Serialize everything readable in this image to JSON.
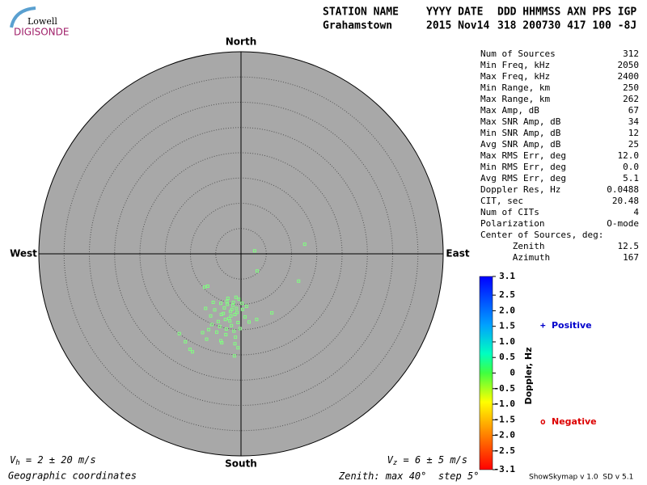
{
  "logo": {
    "line1": "Lowell",
    "line2": "DIGISONDE"
  },
  "header": {
    "labels": [
      "STATION NAME",
      "YYYY DATE",
      "DDD HHMMSS AXN PPS IGP"
    ],
    "values": [
      "Grahamstown",
      "2015 Nov14",
      "318 200730 417 100 -8J"
    ]
  },
  "stats": [
    {
      "label": "Num of Sources",
      "value": "312"
    },
    {
      "label": "Min Freq, kHz",
      "value": "2050"
    },
    {
      "label": "Max Freq, kHz",
      "value": "2400"
    },
    {
      "label": "Min Range, km",
      "value": "250"
    },
    {
      "label": "Max Range, km",
      "value": "262"
    },
    {
      "label": "Max Amp, dB",
      "value": "67"
    },
    {
      "label": "Max SNR Amp, dB",
      "value": "34"
    },
    {
      "label": "Min SNR Amp, dB",
      "value": "12"
    },
    {
      "label": "Avg SNR Amp, dB",
      "value": "25"
    },
    {
      "label": "Max RMS Err, deg",
      "value": "12.0"
    },
    {
      "label": "Min RMS Err, deg",
      "value": "0.0"
    },
    {
      "label": "Avg RMS Err, deg",
      "value": "5.1"
    },
    {
      "label": "Doppler Res, Hz",
      "value": "0.0488"
    },
    {
      "label": "CIT, sec",
      "value": "20.48"
    },
    {
      "label": "Num of CITs",
      "value": "4"
    },
    {
      "label": "Polarization",
      "value": "O-mode"
    },
    {
      "label": "Center of Sources, deg:",
      "value": ""
    },
    {
      "label": "      Zenith",
      "value": "12.5"
    },
    {
      "label": "      Azimuth",
      "value": "167"
    }
  ],
  "chart_data": {
    "type": "skymap",
    "directions": {
      "north": "North",
      "south": "South",
      "west": "West",
      "east": "East"
    },
    "zenith_max": 40,
    "zenith_step": 5,
    "point_color": "#80ff80",
    "points": [
      [
        -2.1,
        -11.4
      ],
      [
        -1.6,
        -10.2
      ],
      [
        -2.8,
        -9.4
      ],
      [
        -1.0,
        -8.6
      ],
      [
        -0.4,
        -9.0
      ],
      [
        -3.3,
        -10.7
      ],
      [
        -2.4,
        -12.8
      ],
      [
        -1.2,
        -12.0
      ],
      [
        0.3,
        -11.0
      ],
      [
        0.8,
        -12.5
      ],
      [
        -0.6,
        -13.6
      ],
      [
        -3.9,
        -12.0
      ],
      [
        -4.5,
        -13.4
      ],
      [
        -1.9,
        -14.2
      ],
      [
        -2.9,
        -14.9
      ],
      [
        -5.2,
        -11.1
      ],
      [
        -4.0,
        -9.8
      ],
      [
        -1.5,
        -9.6
      ],
      [
        -2.6,
        -8.8
      ],
      [
        0.2,
        -9.8
      ],
      [
        1.1,
        -10.4
      ],
      [
        -0.9,
        -10.8
      ],
      [
        -3.5,
        -11.8
      ],
      [
        -2.2,
        -13.3
      ],
      [
        -1.4,
        -15.3
      ],
      [
        -4.8,
        -15.5
      ],
      [
        -5.8,
        -14.0
      ],
      [
        -6.4,
        -15.0
      ],
      [
        -3.0,
        -16.0
      ],
      [
        -1.1,
        -16.5
      ],
      [
        -0.2,
        -14.8
      ],
      [
        1.6,
        -13.5
      ],
      [
        -2.7,
        -10.0
      ],
      [
        -1.8,
        -11.0
      ],
      [
        -0.8,
        -11.6
      ],
      [
        -3.1,
        -13.0
      ],
      [
        -2.0,
        -12.3
      ],
      [
        -4.2,
        -14.4
      ],
      [
        -6.8,
        -16.9
      ],
      [
        -7.6,
        -15.6
      ],
      [
        -5.5,
        -9.6
      ],
      [
        -6.0,
        -12.3
      ],
      [
        -7.0,
        -10.8
      ],
      [
        -3.8,
        -17.6
      ],
      [
        -1.2,
        -17.8
      ],
      [
        -0.6,
        -18.6
      ],
      [
        12.6,
        1.9
      ],
      [
        11.4,
        -5.4
      ],
      [
        3.2,
        -3.4
      ],
      [
        2.7,
        0.6
      ],
      [
        6.1,
        -11.7
      ],
      [
        -7.2,
        -6.6
      ],
      [
        -6.6,
        -6.4
      ],
      [
        -12.2,
        -15.8
      ],
      [
        -10.1,
        -18.9
      ],
      [
        -9.6,
        -19.4
      ],
      [
        -1.3,
        -20.2
      ],
      [
        -11.0,
        -17.4
      ],
      [
        3.1,
        -13.0
      ],
      [
        -4.0,
        -17.2
      ]
    ],
    "colorbar": {
      "label": "Doppler, Hz",
      "lim": [
        -3.1,
        3.1
      ],
      "ticks": [
        3.1,
        2.5,
        {
          "value": 2,
          "label": "2.0"
        },
        1.5,
        {
          "value": 1,
          "label": "1.0"
        },
        0.5,
        0,
        -0.5,
        {
          "value": -1,
          "label": "-1.0"
        },
        -1.5,
        {
          "value": -2,
          "label": "-2.0"
        },
        -2.5,
        -3.1
      ]
    },
    "legend": [
      {
        "symbol": "+",
        "name": "Positive",
        "color": "#0000cc"
      },
      {
        "symbol": "o",
        "name": "Negative",
        "color": "#dd0000"
      }
    ]
  },
  "footer": {
    "vh": {
      "symbol": "V",
      "sub": "h",
      "text": " = 2 ± 20 m/s"
    },
    "vz": {
      "symbol": "V",
      "sub": "z",
      "text": " = 6 ± 5 m/s"
    },
    "coordinates": "Geographic coordinates",
    "zenith_label": "Zenith: max ",
    "degree": "°",
    "step_label": "  step ",
    "version": "ShowSkymap v 1.0  SD v 5.1"
  }
}
